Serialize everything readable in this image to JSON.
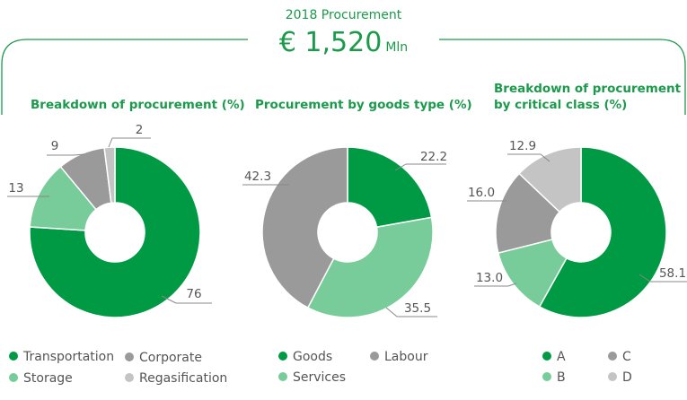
{
  "header": {
    "subtitle": "2018 Procurement",
    "amount": "€ 1,520",
    "unit": "Mln"
  },
  "colors": {
    "dark_green": "#009a44",
    "light_green": "#77cc99",
    "dark_gray": "#9a9a9a",
    "light_gray": "#c4c4c4",
    "accent": "#1a9a4a"
  },
  "chart_data": [
    {
      "type": "pie",
      "title": "Breakdown of procurement (%)",
      "categories": [
        "Transportation",
        "Storage",
        "Corporate",
        "Regasification"
      ],
      "values": [
        76,
        13,
        9,
        2
      ],
      "labels": [
        "76",
        "13",
        "9",
        "2"
      ],
      "colors": [
        "#009a44",
        "#77cc99",
        "#9a9a9a",
        "#c4c4c4"
      ]
    },
    {
      "type": "pie",
      "title": "Procurement by goods type (%)",
      "categories": [
        "Goods",
        "Services",
        "Labour"
      ],
      "values": [
        22.2,
        35.5,
        42.3
      ],
      "labels": [
        "22.2",
        "35.5",
        "42.3"
      ],
      "colors": [
        "#009a44",
        "#77cc99",
        "#9a9a9a"
      ]
    },
    {
      "type": "pie",
      "title": "Breakdown of procurement by critical class (%)",
      "categories": [
        "A",
        "B",
        "C",
        "D"
      ],
      "values": [
        58.1,
        13.0,
        16.0,
        12.9
      ],
      "labels": [
        "58.1",
        "13.0",
        "16.0",
        "12.9"
      ],
      "colors": [
        "#009a44",
        "#77cc99",
        "#9a9a9a",
        "#c4c4c4"
      ]
    }
  ],
  "legends": [
    [
      {
        "label": "Transportation",
        "color": "#009a44"
      },
      {
        "label": "Corporate",
        "color": "#9a9a9a"
      },
      {
        "label": "Storage",
        "color": "#77cc99"
      },
      {
        "label": "Regasification",
        "color": "#c4c4c4"
      }
    ],
    [
      {
        "label": "Goods",
        "color": "#009a44"
      },
      {
        "label": "Labour",
        "color": "#9a9a9a"
      },
      {
        "label": "Services",
        "color": "#77cc99"
      }
    ],
    [
      {
        "label": "A",
        "color": "#009a44"
      },
      {
        "label": "C",
        "color": "#9a9a9a"
      },
      {
        "label": "B",
        "color": "#77cc99"
      },
      {
        "label": "D",
        "color": "#c4c4c4"
      }
    ]
  ]
}
